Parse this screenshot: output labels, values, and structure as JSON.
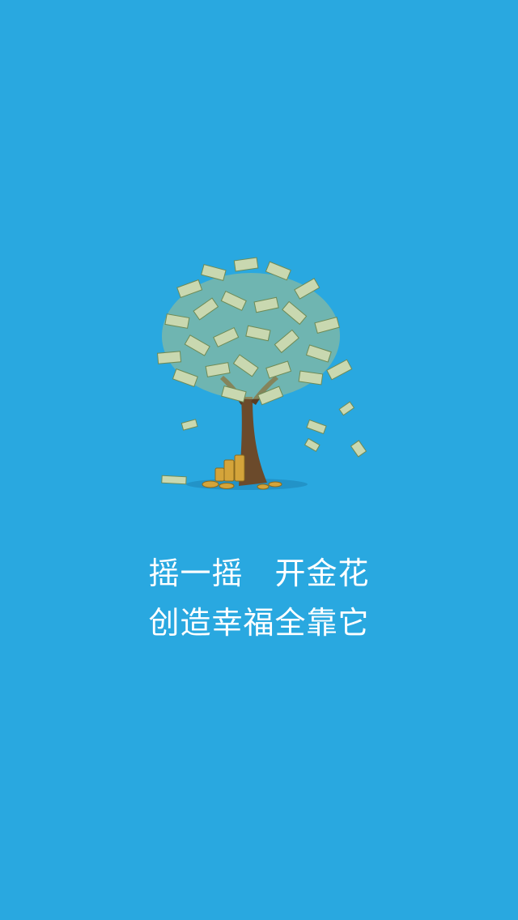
{
  "colors": {
    "background": "#29a8e0",
    "text": "#ffffff",
    "bill_green": "#c9d8b0",
    "trunk_brown": "#6b4a2b",
    "coin_gold": "#d4a43a"
  },
  "illustration": {
    "icon": "money-tree-icon"
  },
  "slogan": {
    "line1": "摇一摇　开金花",
    "line2": "创造幸福全靠它"
  }
}
